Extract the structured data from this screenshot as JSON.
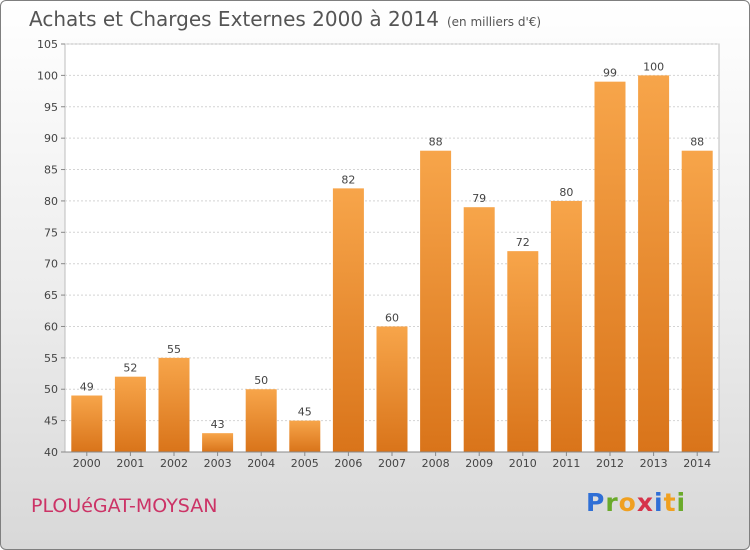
{
  "header": {
    "title": "Achats et Charges Externes 2000 à 2014",
    "unit": "(en milliers d'€)"
  },
  "footer": {
    "commune": "PLOUéGAT-MOYSAN",
    "logo_text": "Proxiti",
    "logo_colors": [
      "#2f6fd6",
      "#6aaa2a",
      "#f0a020",
      "#d6334a",
      "#2f6fd6",
      "#f0a020",
      "#6aaa2a"
    ]
  },
  "chart_data": {
    "type": "bar",
    "categories": [
      "2000",
      "2001",
      "2002",
      "2003",
      "2004",
      "2005",
      "2006",
      "2007",
      "2008",
      "2009",
      "2010",
      "2011",
      "2012",
      "2013",
      "2014"
    ],
    "values": [
      49,
      52,
      55,
      43,
      50,
      45,
      82,
      60,
      88,
      79,
      72,
      80,
      99,
      100,
      88
    ],
    "title": "Achats et Charges Externes 2000 à 2014",
    "xlabel": "",
    "ylabel": "",
    "ylim": [
      40,
      105
    ],
    "yticks": [
      40,
      45,
      50,
      55,
      60,
      65,
      70,
      75,
      80,
      85,
      90,
      95,
      100,
      105
    ],
    "grid": true,
    "bar_color": "#f0962e"
  }
}
